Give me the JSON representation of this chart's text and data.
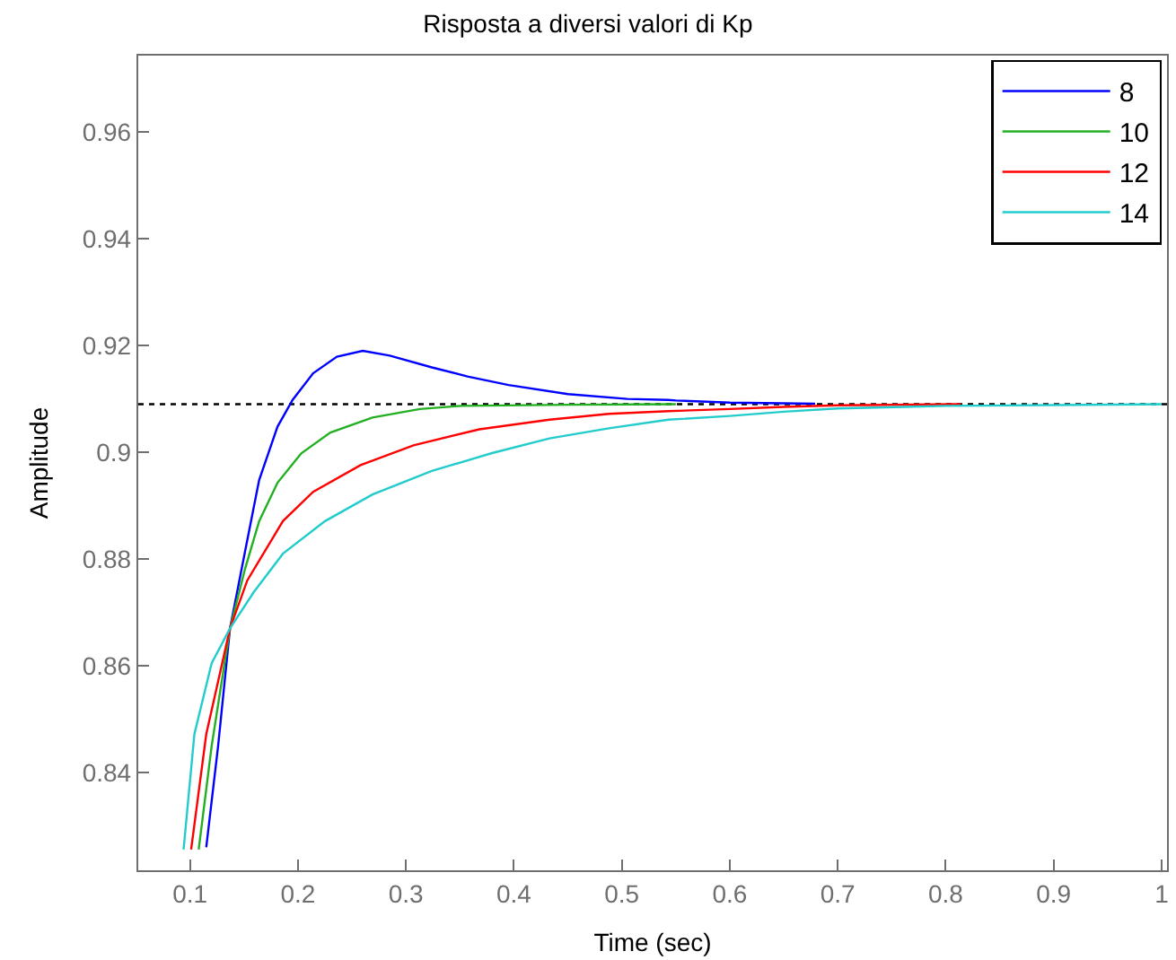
{
  "chart_data": {
    "type": "line",
    "title": "Risposta a diversi valori di Kp",
    "xlabel": "Time (sec)",
    "ylabel": "Amplitude",
    "xlim": [
      0.052,
      1.005
    ],
    "ylim": [
      0.8217,
      0.9743
    ],
    "xticks": [
      0.1,
      0.2,
      0.3,
      0.4,
      0.5,
      0.6,
      0.7,
      0.8,
      0.9,
      1
    ],
    "yticks": [
      0.84,
      0.86,
      0.88,
      0.9,
      0.92,
      0.94,
      0.96
    ],
    "grid": false,
    "legend": "top right",
    "marker": "none",
    "line_style": "solid",
    "ref_lines": [
      {
        "axis": "y",
        "value": 0.909,
        "color": "#000000",
        "line_style": "dotted"
      }
    ],
    "series": [
      {
        "name": "8",
        "color": "#0000ff",
        "x": [
          0.115,
          0.126,
          0.137,
          0.151,
          0.164,
          0.181,
          0.195,
          0.214,
          0.236,
          0.26,
          0.285,
          0.324,
          0.357,
          0.395,
          0.45,
          0.505,
          0.543,
          0.55,
          0.6,
          0.679
        ],
        "values": [
          0.826,
          0.845,
          0.867,
          0.8815,
          0.8948,
          0.9048,
          0.9098,
          0.9148,
          0.9179,
          0.919,
          0.9181,
          0.9159,
          0.9142,
          0.9126,
          0.9109,
          0.91,
          0.9098,
          0.9097,
          0.9093,
          0.9091
        ]
      },
      {
        "name": "10",
        "color": "#22b022",
        "x": [
          0.108,
          0.12,
          0.137,
          0.151,
          0.164,
          0.181,
          0.203,
          0.23,
          0.269,
          0.313,
          0.351,
          0.45,
          0.55
        ],
        "values": [
          0.8256,
          0.845,
          0.867,
          0.8782,
          0.8871,
          0.8943,
          0.8998,
          0.9037,
          0.9065,
          0.9081,
          0.9087,
          0.9089,
          0.909
        ]
      },
      {
        "name": "12",
        "color": "#ff0000",
        "x": [
          0.101,
          0.115,
          0.137,
          0.153,
          0.186,
          0.214,
          0.258,
          0.307,
          0.368,
          0.433,
          0.488,
          0.543,
          0.6,
          0.65,
          0.7,
          0.814
        ],
        "values": [
          0.8256,
          0.8472,
          0.867,
          0.876,
          0.8871,
          0.8926,
          0.8976,
          0.9013,
          0.9043,
          0.9061,
          0.9072,
          0.9077,
          0.9081,
          0.9085,
          0.9088,
          0.909
        ]
      },
      {
        "name": "14",
        "color": "#22cccc",
        "x": [
          0.094,
          0.104,
          0.12,
          0.137,
          0.159,
          0.186,
          0.225,
          0.269,
          0.324,
          0.379,
          0.433,
          0.488,
          0.543,
          0.6,
          0.65,
          0.7,
          0.8,
          1.0
        ],
        "values": [
          0.8256,
          0.8472,
          0.8605,
          0.867,
          0.8738,
          0.881,
          0.8871,
          0.8921,
          0.8965,
          0.8998,
          0.9026,
          0.9045,
          0.9061,
          0.9068,
          0.9076,
          0.9082,
          0.9087,
          0.909
        ]
      }
    ]
  }
}
